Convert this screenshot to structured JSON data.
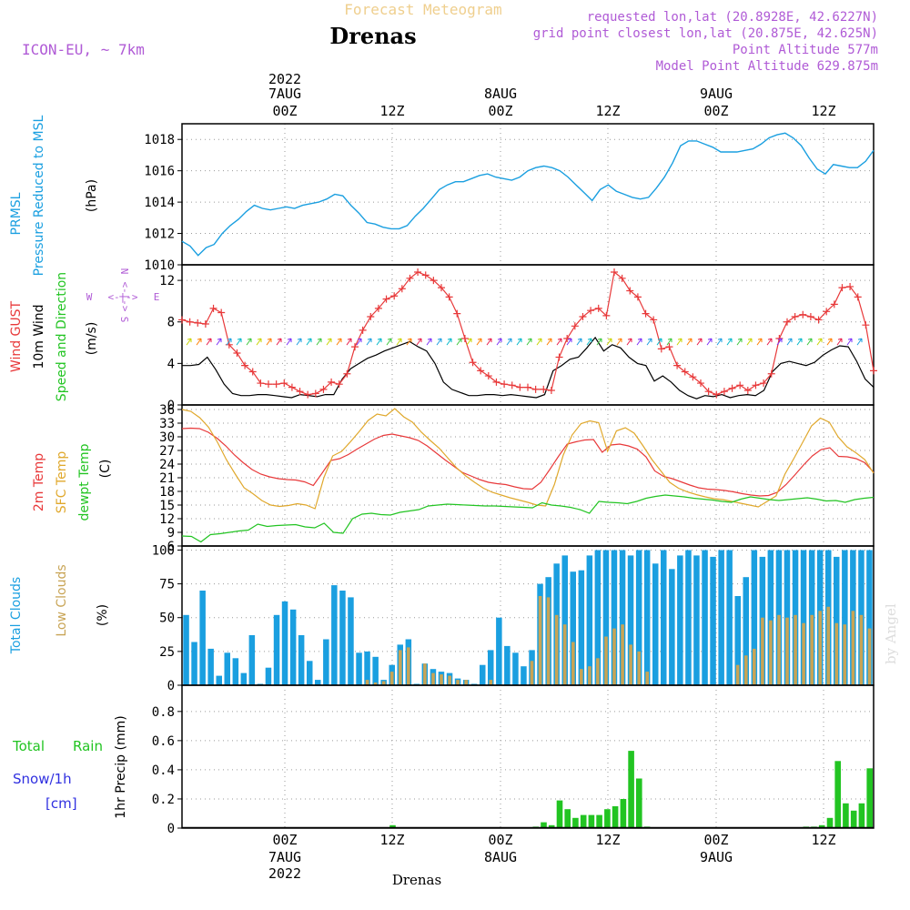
{
  "header": {
    "title_faint": "Forecast Meteogram",
    "station": "Drenas",
    "model": "ICON-EU, ~ 7km",
    "requested": "requested lon,lat (20.8928E, 42.6227N)",
    "gridpoint": "grid point closest lon,lat (20.875E, 42.625N)",
    "point_alt": "Point Altitude 577m",
    "model_alt": "Model Point Altitude 629.875m",
    "credit": "by Angel",
    "bottom_station": "Drenas"
  },
  "time_axis": {
    "hour_labels": [
      "00Z",
      "12Z",
      "00Z",
      "12Z",
      "00Z",
      "12Z"
    ],
    "top_dates": [
      "7AUG",
      "8AUG",
      "9AUG"
    ],
    "top_year": "2022",
    "bottom_dates": [
      "7AUG",
      "8AUG",
      "9AUG"
    ],
    "bottom_year": "2022"
  },
  "colors": {
    "pressure": "#1a9fe0",
    "gust": "#e8393a",
    "wind": "#000000",
    "t2m": "#e8393a",
    "tsfc": "#e0a82c",
    "dewpt": "#22c422",
    "total_clouds": "#1a9fe0",
    "low_clouds": "#c8a455",
    "rain": "#22c422",
    "snow": "#3030e0",
    "compass": "#b05bd6"
  },
  "chart_data": [
    {
      "type": "line",
      "panel": "pressure",
      "ylabels": [
        "PRMSL",
        "Pressure Reduced to MSL",
        "(hPa)"
      ],
      "ylim": [
        1010,
        1019
      ],
      "yticks": [
        "1010",
        "1012",
        "1014",
        "1016",
        "1018"
      ],
      "series": [
        {
          "name": "PRMSL",
          "values": [
            1011.5,
            1011.2,
            1010.6,
            1011.1,
            1011.3,
            1012.0,
            1012.5,
            1012.9,
            1013.4,
            1013.8,
            1013.6,
            1013.5,
            1013.6,
            1013.7,
            1013.6,
            1013.8,
            1013.9,
            1014.0,
            1014.2,
            1014.5,
            1014.4,
            1013.8,
            1013.3,
            1012.7,
            1012.6,
            1012.4,
            1012.3,
            1012.3,
            1012.5,
            1013.1,
            1013.6,
            1014.2,
            1014.8,
            1015.1,
            1015.3,
            1015.3,
            1015.5,
            1015.7,
            1015.8,
            1015.6,
            1015.5,
            1015.4,
            1015.6,
            1016.0,
            1016.2,
            1016.3,
            1016.2,
            1016.0,
            1015.6,
            1015.1,
            1014.6,
            1014.1,
            1014.8,
            1015.1,
            1014.7,
            1014.5,
            1014.3,
            1014.2,
            1014.3,
            1014.9,
            1015.6,
            1016.5,
            1017.6,
            1017.9,
            1017.9,
            1017.7,
            1017.5,
            1017.2,
            1017.2,
            1017.2,
            1017.3,
            1017.4,
            1017.7,
            1018.1,
            1018.3,
            1018.4,
            1018.1,
            1017.6,
            1016.8,
            1016.1,
            1015.8,
            1016.4,
            1016.3,
            1016.2,
            1016.2,
            1016.6,
            1017.3
          ]
        }
      ]
    },
    {
      "type": "line",
      "panel": "wind",
      "ylabels": [
        "Wind GUST",
        "10m Wind",
        "(m/s)",
        "Speed and Direction"
      ],
      "ylim": [
        0,
        13.5
      ],
      "yticks": [
        "0",
        "4",
        "8",
        "12"
      ],
      "compass": {
        "n": "N",
        "s": "S",
        "w": "W",
        "e": "E",
        "arrows": "<-|->"
      },
      "series": [
        {
          "name": "Wind GUST",
          "values": [
            8.2,
            8.0,
            7.9,
            7.8,
            9.3,
            8.9,
            5.8,
            5.0,
            3.8,
            3.2,
            2.1,
            2.0,
            2.0,
            2.1,
            1.7,
            1.3,
            1.0,
            1.1,
            1.5,
            2.2,
            2.0,
            3.0,
            5.6,
            7.2,
            8.5,
            9.3,
            10.2,
            10.5,
            11.2,
            12.2,
            12.8,
            12.5,
            12.0,
            11.3,
            10.4,
            8.8,
            6.4,
            4.1,
            3.3,
            2.8,
            2.2,
            2.0,
            1.9,
            1.7,
            1.7,
            1.5,
            1.5,
            1.4,
            4.6,
            6.4,
            7.6,
            8.5,
            9.1,
            9.3,
            8.6,
            12.8,
            12.2,
            11.0,
            10.4,
            8.8,
            8.2,
            5.4,
            5.6,
            3.8,
            3.2,
            2.7,
            2.1,
            1.3,
            1.0,
            1.3,
            1.6,
            1.9,
            1.4,
            1.9,
            2.1,
            3.0,
            6.4,
            8.0,
            8.5,
            8.7,
            8.5,
            8.2,
            9.0,
            9.7,
            11.3,
            11.4,
            10.4,
            7.7,
            3.3
          ]
        },
        {
          "name": "10m Wind",
          "values": [
            3.8,
            3.8,
            3.9,
            4.6,
            3.4,
            2.0,
            1.1,
            0.9,
            0.9,
            1.0,
            1.0,
            0.9,
            0.8,
            0.7,
            1.0,
            0.9,
            0.8,
            1.0,
            1.0,
            2.5,
            3.5,
            4.0,
            4.5,
            4.8,
            5.2,
            5.5,
            5.8,
            6.1,
            5.6,
            5.2,
            4.0,
            2.2,
            1.5,
            1.2,
            0.9,
            0.9,
            1.0,
            1.0,
            0.9,
            1.0,
            0.9,
            0.8,
            0.7,
            1.0,
            3.3,
            3.8,
            4.4,
            4.6,
            5.5,
            6.5,
            5.2,
            5.8,
            5.5,
            4.6,
            4.0,
            3.8,
            2.3,
            2.8,
            2.2,
            1.4,
            0.9,
            0.6,
            0.9,
            0.8,
            1.0,
            0.7,
            0.9,
            1.0,
            0.9,
            1.4,
            3.2,
            4.0,
            4.2,
            4.0,
            3.8,
            4.1,
            4.8,
            5.3,
            5.7,
            5.6,
            4.2,
            2.5,
            1.7
          ]
        }
      ]
    },
    {
      "type": "line",
      "panel": "temperature",
      "ylabels": [
        "2m Temp",
        "SFC Temp",
        "dewpt Temp",
        "(C)"
      ],
      "ylim": [
        6,
        37
      ],
      "yticks": [
        "6",
        "9",
        "12",
        "15",
        "18",
        "21",
        "24",
        "27",
        "30",
        "33",
        "36"
      ],
      "series": [
        {
          "name": "2m Temp",
          "values": [
            31.8,
            31.9,
            31.8,
            31.0,
            29.7,
            28.0,
            26.0,
            24.3,
            22.8,
            21.8,
            21.2,
            20.8,
            20.6,
            20.5,
            20.1,
            19.3,
            22.0,
            24.8,
            25.2,
            26.1,
            27.3,
            28.4,
            29.5,
            30.3,
            30.6,
            30.2,
            29.8,
            29.2,
            28.0,
            26.5,
            25.0,
            23.6,
            22.2,
            21.4,
            20.6,
            20.0,
            19.7,
            19.5,
            19.0,
            18.6,
            18.5,
            20.0,
            22.8,
            25.7,
            28.4,
            28.9,
            29.3,
            29.4,
            26.6,
            28.2,
            28.4,
            28.0,
            27.3,
            25.6,
            22.5,
            21.3,
            20.8,
            20.1,
            19.4,
            18.8,
            18.5,
            18.4,
            18.2,
            17.9,
            17.5,
            17.2,
            17.0,
            17.1,
            17.8,
            19.5,
            21.6,
            23.8,
            25.8,
            27.2,
            27.6,
            25.7,
            25.6,
            25.2,
            24.3,
            22.2
          ]
        },
        {
          "name": "SFC Temp",
          "values": [
            36.0,
            35.6,
            34.2,
            32.1,
            28.8,
            25.0,
            21.8,
            18.8,
            17.5,
            16.0,
            15.0,
            14.7,
            14.9,
            15.3,
            15.0,
            14.2,
            21.0,
            25.8,
            26.8,
            28.9,
            31.2,
            33.6,
            35.0,
            34.6,
            36.2,
            34.4,
            33.2,
            31.0,
            29.2,
            27.5,
            25.3,
            23.1,
            21.4,
            20.0,
            18.7,
            17.8,
            17.2,
            16.6,
            16.1,
            15.6,
            15.0,
            14.8,
            19.5,
            26.0,
            30.4,
            32.9,
            33.5,
            33.1,
            26.8,
            31.3,
            32.0,
            30.8,
            28.0,
            25.0,
            22.5,
            20.0,
            18.7,
            17.9,
            17.3,
            16.8,
            16.4,
            16.2,
            15.8,
            15.4,
            15.0,
            14.6,
            15.8,
            17.0,
            21.8,
            25.2,
            28.8,
            32.4,
            34.1,
            33.2,
            30.0,
            27.8,
            26.5,
            25.0,
            22.0
          ]
        },
        {
          "name": "dewpt Temp",
          "values": [
            8.2,
            8.1,
            6.9,
            8.5,
            8.7,
            9.0,
            9.3,
            9.5,
            10.8,
            10.3,
            10.5,
            10.6,
            10.7,
            10.2,
            10.0,
            11.0,
            9.0,
            8.8,
            12.0,
            13.0,
            13.2,
            12.9,
            12.8,
            13.4,
            13.7,
            14.0,
            14.8,
            15.0,
            15.2,
            15.1,
            15.0,
            14.9,
            14.8,
            14.8,
            14.7,
            14.6,
            14.5,
            14.4,
            15.5,
            15.0,
            14.8,
            14.5,
            14.0,
            13.2,
            15.8,
            15.6,
            15.5,
            15.3,
            15.8,
            16.5,
            16.9,
            17.2,
            17.0,
            16.8,
            16.5,
            16.3,
            16.1,
            15.8,
            15.6,
            16.3,
            16.8,
            16.5,
            16.2,
            16.0,
            16.2,
            16.4,
            16.6,
            16.3,
            15.9,
            16.0,
            15.6,
            16.2,
            16.5,
            16.7
          ]
        }
      ]
    },
    {
      "type": "bar",
      "panel": "clouds",
      "ylabels": [
        "Total Clouds",
        "Low Clouds",
        "(%)"
      ],
      "ylim": [
        0,
        103
      ],
      "yticks": [
        "0",
        "25",
        "50",
        "75",
        "100"
      ],
      "series": [
        {
          "name": "Total Clouds",
          "values": [
            52,
            32,
            70,
            27,
            7,
            24,
            20,
            9,
            37,
            1,
            13,
            52,
            62,
            56,
            37,
            18,
            4,
            34,
            74,
            70,
            65,
            24,
            25,
            21,
            4,
            15,
            30,
            34,
            1,
            16,
            12,
            10,
            9,
            5,
            4,
            1,
            15,
            26,
            50,
            29,
            24,
            14,
            26,
            75,
            80,
            90,
            96,
            84,
            85,
            96,
            100,
            100,
            100,
            100,
            96,
            100,
            100,
            90,
            100,
            86,
            96,
            100,
            96,
            100,
            95,
            100,
            100,
            66,
            80,
            100,
            95,
            100,
            100,
            100,
            100,
            100,
            100,
            100,
            100,
            95,
            100,
            100,
            100,
            100
          ]
        },
        {
          "name": "Low Clouds",
          "values": [
            0,
            0,
            0,
            0,
            0,
            0,
            0,
            0,
            0,
            0,
            0,
            0,
            0,
            0,
            0,
            0,
            0,
            0,
            0,
            0,
            0,
            0,
            4,
            2,
            3,
            10,
            26,
            28,
            0,
            16,
            9,
            8,
            7,
            4,
            4,
            0,
            0,
            4,
            0,
            0,
            0,
            0,
            18,
            66,
            65,
            52,
            45,
            32,
            12,
            14,
            20,
            36,
            42,
            45,
            30,
            25,
            10,
            0,
            0,
            0,
            0,
            0,
            0,
            0,
            0,
            0,
            0,
            15,
            22,
            27,
            50,
            48,
            52,
            50,
            52,
            46,
            52,
            55,
            58,
            46,
            45,
            55,
            52,
            42
          ]
        }
      ]
    },
    {
      "type": "bar",
      "panel": "precip",
      "ylabels": [
        "1hr Precip (mm)"
      ],
      "legend": {
        "total": "Total",
        "rain": "Rain",
        "snow": "Snow/1h",
        "snow_unit": "[cm]"
      },
      "ylim": [
        0,
        0.98
      ],
      "yticks": [
        "0",
        "0.2",
        "0.4",
        "0.6",
        "0.8"
      ],
      "series": [
        {
          "name": "Rain",
          "values": [
            0,
            0,
            0,
            0,
            0,
            0,
            0,
            0,
            0,
            0,
            0,
            0,
            0,
            0,
            0,
            0,
            0,
            0,
            0,
            0,
            0,
            0,
            0,
            0,
            0,
            0,
            0.02,
            0,
            0,
            0,
            0,
            0,
            0,
            0,
            0,
            0,
            0,
            0,
            0,
            0,
            0,
            0,
            0,
            0,
            0.01,
            0.04,
            0.02,
            0.19,
            0.13,
            0.07,
            0.09,
            0.09,
            0.09,
            0.13,
            0.15,
            0.2,
            0.53,
            0.34,
            0.01,
            0,
            0,
            0,
            0,
            0,
            0,
            0,
            0,
            0,
            0,
            0,
            0,
            0,
            0,
            0,
            0,
            0,
            0,
            0,
            0.01,
            0.01,
            0.02,
            0.07,
            0.46,
            0.17,
            0.12,
            0.17,
            0.41
          ]
        }
      ]
    }
  ]
}
